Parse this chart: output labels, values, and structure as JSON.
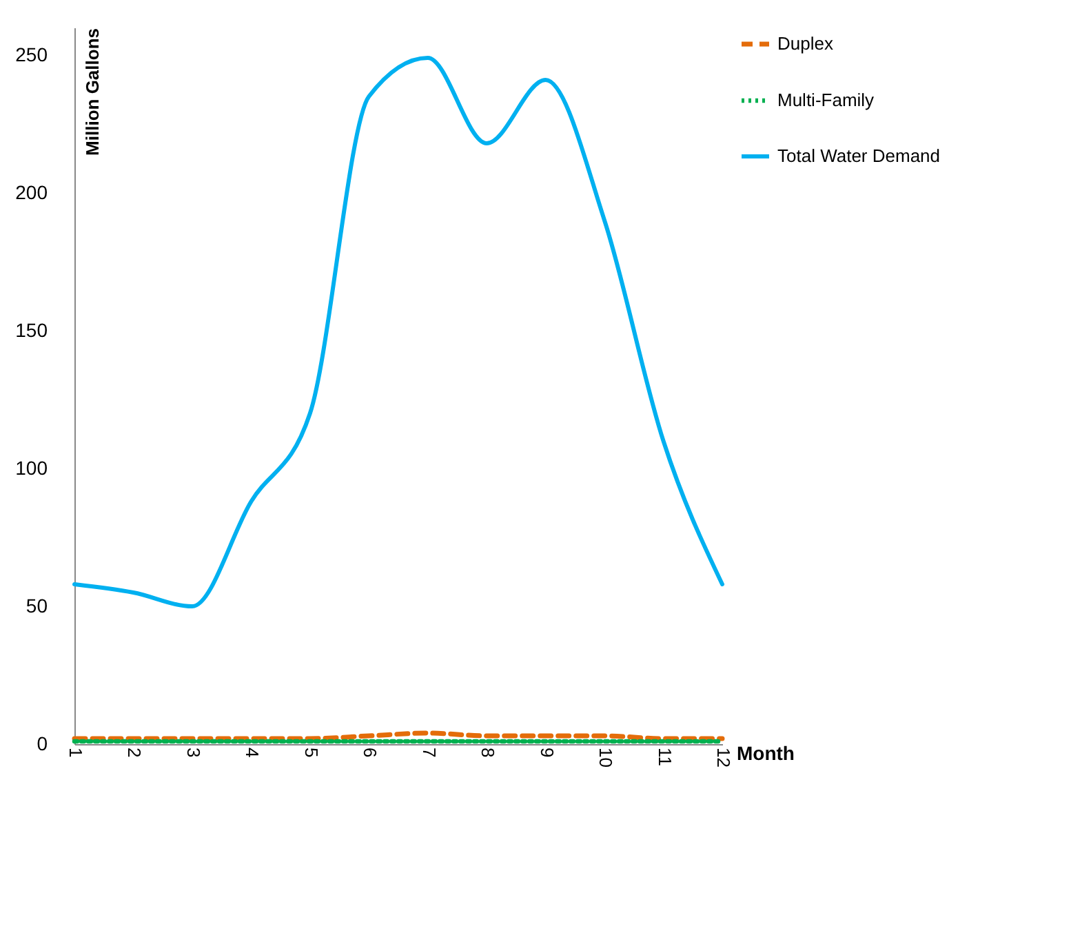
{
  "chart_data": {
    "type": "line",
    "xlabel": "Month",
    "ylabel": "Million Gallons",
    "categories": [
      "1",
      "2",
      "3",
      "4",
      "5",
      "6",
      "7",
      "8",
      "9",
      "10",
      "11",
      "12"
    ],
    "series": [
      {
        "name": "Duplex",
        "color": "#e46c0a",
        "line_style": "dashed",
        "values": [
          2,
          2,
          2,
          2,
          2,
          3,
          4,
          3,
          3,
          3,
          2,
          2
        ]
      },
      {
        "name": "Multi-Family",
        "color": "#00b050",
        "line_style": "dotted",
        "values": [
          1,
          1,
          1,
          1,
          1,
          1,
          1,
          1,
          1,
          1,
          1,
          1
        ]
      },
      {
        "name": "Total Water Demand",
        "color": "#00b0f0",
        "line_style": "solid",
        "values": [
          58,
          55,
          50,
          88,
          120,
          235,
          249,
          218,
          241,
          190,
          110,
          58
        ]
      }
    ],
    "ylim": [
      0,
      260
    ],
    "yticks": [
      0,
      50,
      100,
      150,
      200,
      250
    ],
    "grid": false,
    "legend": "top right",
    "marker": "none"
  }
}
